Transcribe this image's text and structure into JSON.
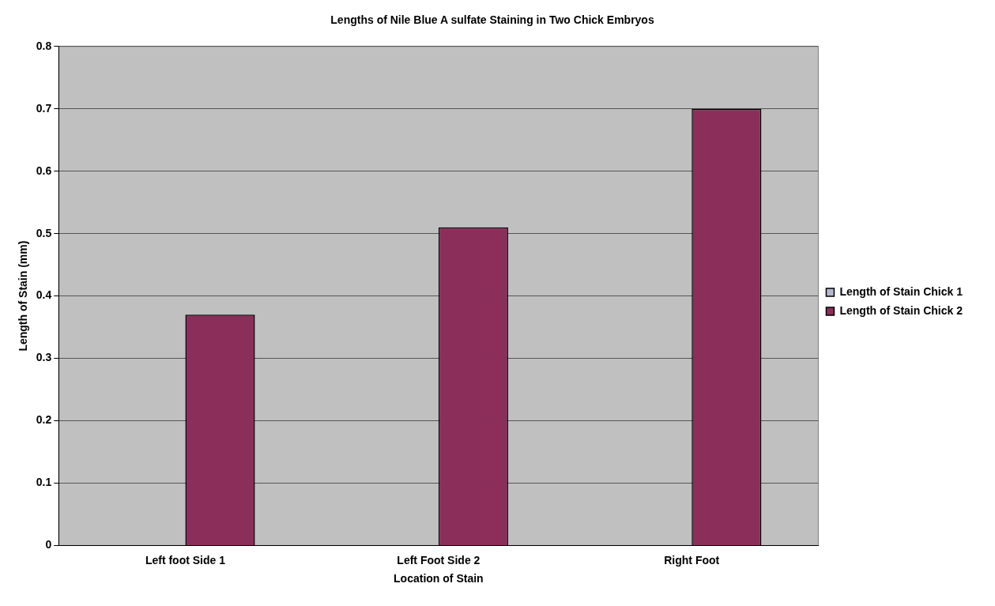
{
  "chart_data": {
    "type": "bar",
    "title": "Lengths of Nile Blue A sulfate Staining in Two Chick Embryos",
    "xlabel": "Location of Stain",
    "ylabel": "Length of Stain (mm)",
    "categories": [
      "Left foot Side 1",
      "Left Foot Side 2",
      "Right Foot"
    ],
    "series": [
      {
        "name": "Length of Stain Chick 1",
        "color": "#b4b8cc",
        "values": [
          null,
          null,
          null
        ]
      },
      {
        "name": "Length of Stain Chick 2",
        "color": "#8b2f5a",
        "values": [
          0.37,
          0.51,
          0.7
        ]
      }
    ],
    "ylim": [
      0,
      0.8
    ],
    "yticks": [
      0,
      0.1,
      0.2,
      0.3,
      0.4,
      0.5,
      0.6,
      0.7,
      0.8
    ],
    "grid": "y",
    "legend": "right"
  }
}
